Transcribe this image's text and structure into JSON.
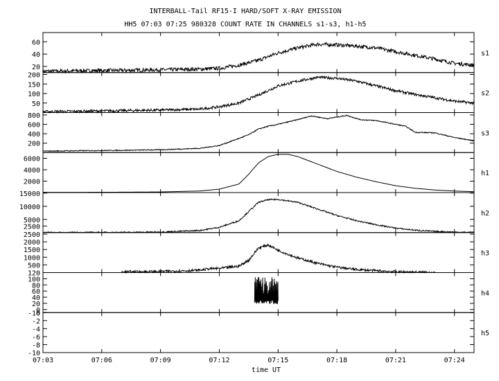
{
  "title_line1": "INTERBALL-Tail RF15-I HARD/SOFT X-RAY EMISSION",
  "title_line2": "HH5 07:03 07:25 980328  COUNT RATE IN CHANNELS s1-s3, h1-h5",
  "xlabel": "time UT",
  "chart_data": {
    "type": "line",
    "title": "INTERBALL-Tail RF15-I HARD/SOFT X-RAY EMISSION",
    "subtitle": "HH5 07:03 07:25 980328  COUNT RATE IN CHANNELS s1-s3, h1-h5",
    "xlabel": "time UT",
    "x_range_minutes": [
      0,
      22
    ],
    "x_ticks": [
      {
        "t": 0,
        "label": "07:03"
      },
      {
        "t": 3,
        "label": "07:06"
      },
      {
        "t": 6,
        "label": "07:09"
      },
      {
        "t": 9,
        "label": "07:12"
      },
      {
        "t": 12,
        "label": "07:15"
      },
      {
        "t": 15,
        "label": "07:18"
      },
      {
        "t": 18,
        "label": "07:21"
      },
      {
        "t": 21,
        "label": "07:24"
      }
    ],
    "panels": [
      {
        "name": "s1",
        "ylim": [
          10,
          75
        ],
        "yticks": [
          {
            "v": 20,
            "label": "20"
          },
          {
            "v": 40,
            "label": "40"
          },
          {
            "v": 60,
            "label": "60"
          }
        ],
        "noise": 3,
        "points": [
          [
            0,
            12
          ],
          [
            2,
            13
          ],
          [
            4,
            13.5
          ],
          [
            6,
            14.5
          ],
          [
            8,
            15.5
          ],
          [
            9,
            17
          ],
          [
            10,
            22
          ],
          [
            11,
            30
          ],
          [
            11.5,
            36
          ],
          [
            12,
            42
          ],
          [
            13,
            50
          ],
          [
            14,
            56
          ],
          [
            15,
            55
          ],
          [
            16,
            53
          ],
          [
            17,
            50
          ],
          [
            18,
            44
          ],
          [
            19,
            38
          ],
          [
            20,
            32
          ],
          [
            21,
            25
          ],
          [
            22,
            22
          ]
        ]
      },
      {
        "name": "s2",
        "ylim": [
          0,
          210
        ],
        "yticks": [
          {
            "v": 50,
            "label": "50"
          },
          {
            "v": 100,
            "label": "100"
          },
          {
            "v": 150,
            "label": "150"
          },
          {
            "v": 200,
            "label": "200"
          }
        ],
        "noise": 7,
        "points": [
          [
            0,
            5
          ],
          [
            2,
            7
          ],
          [
            4,
            10
          ],
          [
            6,
            13
          ],
          [
            8,
            18
          ],
          [
            9,
            30
          ],
          [
            10,
            50
          ],
          [
            11,
            92
          ],
          [
            12,
            140
          ],
          [
            13,
            165
          ],
          [
            14,
            185
          ],
          [
            15,
            180
          ],
          [
            16,
            165
          ],
          [
            17,
            140
          ],
          [
            18,
            115
          ],
          [
            19,
            95
          ],
          [
            20,
            78
          ],
          [
            21,
            60
          ],
          [
            22,
            50
          ]
        ]
      },
      {
        "name": "s3",
        "ylim": [
          0,
          850
        ],
        "yticks": [
          {
            "v": 200,
            "label": "200"
          },
          {
            "v": 400,
            "label": "400"
          },
          {
            "v": 600,
            "label": "600"
          },
          {
            "v": 800,
            "label": "800"
          }
        ],
        "noise": 10,
        "points": [
          [
            0,
            30
          ],
          [
            2,
            40
          ],
          [
            4,
            48
          ],
          [
            6,
            60
          ],
          [
            8,
            90
          ],
          [
            9,
            150
          ],
          [
            10,
            300
          ],
          [
            10.5,
            380
          ],
          [
            11,
            500
          ],
          [
            11.5,
            560
          ],
          [
            12,
            600
          ],
          [
            13,
            700
          ],
          [
            13.7,
            780
          ],
          [
            14.5,
            720
          ],
          [
            15.5,
            790
          ],
          [
            16.2,
            700
          ],
          [
            17,
            680
          ],
          [
            18,
            600
          ],
          [
            18.5,
            560
          ],
          [
            19,
            430
          ],
          [
            20,
            420
          ],
          [
            21,
            320
          ],
          [
            22,
            250
          ]
        ]
      },
      {
        "name": "h1",
        "ylim": [
          0,
          7000
        ],
        "yticks": [
          {
            "v": 2000,
            "label": "2000"
          },
          {
            "v": 4000,
            "label": "4000"
          },
          {
            "v": 6000,
            "label": "6000"
          }
        ],
        "noise": 0,
        "points": [
          [
            0,
            40
          ],
          [
            2,
            50
          ],
          [
            4,
            70
          ],
          [
            6,
            110
          ],
          [
            8,
            280
          ],
          [
            9,
            600
          ],
          [
            10,
            1500
          ],
          [
            10.5,
            3200
          ],
          [
            11,
            5200
          ],
          [
            11.5,
            6300
          ],
          [
            12,
            6700
          ],
          [
            12.5,
            6700
          ],
          [
            13,
            6300
          ],
          [
            14,
            5000
          ],
          [
            15,
            3700
          ],
          [
            16,
            2700
          ],
          [
            17,
            1900
          ],
          [
            18,
            1200
          ],
          [
            19,
            750
          ],
          [
            20,
            450
          ],
          [
            21,
            270
          ],
          [
            22,
            160
          ]
        ]
      },
      {
        "name": "h2",
        "ylim": [
          0,
          15200
        ],
        "yticks": [
          {
            "v": 2500,
            "label": "2500"
          },
          {
            "v": 5000,
            "label": "5000"
          },
          {
            "v": 10000,
            "label": "10000"
          },
          {
            "v": 15000,
            "label": "15000"
          }
        ],
        "noise": 250,
        "points": [
          [
            0,
            20
          ],
          [
            2,
            40
          ],
          [
            4,
            80
          ],
          [
            6,
            200
          ],
          [
            8,
            800
          ],
          [
            9,
            2000
          ],
          [
            10,
            4500
          ],
          [
            10.5,
            8000
          ],
          [
            11,
            11500
          ],
          [
            11.5,
            12500
          ],
          [
            12,
            12600
          ],
          [
            13,
            11500
          ],
          [
            14,
            9000
          ],
          [
            15,
            6500
          ],
          [
            16,
            4500
          ],
          [
            17,
            3000
          ],
          [
            18,
            1700
          ],
          [
            19,
            900
          ],
          [
            20,
            450
          ],
          [
            21,
            180
          ],
          [
            22,
            60
          ]
        ]
      },
      {
        "name": "h3",
        "ylim": [
          0,
          2600
        ],
        "yticks": [
          {
            "v": 500,
            "label": "500"
          },
          {
            "v": 1000,
            "label": "1000"
          },
          {
            "v": 1500,
            "label": "1500"
          },
          {
            "v": 2000,
            "label": "2000"
          },
          {
            "v": 2500,
            "label": "2500"
          }
        ],
        "noise": 80,
        "points": [
          [
            4,
            50
          ],
          [
            6,
            70
          ],
          [
            8,
            150
          ],
          [
            8.5,
            250
          ],
          [
            9,
            270
          ],
          [
            10,
            420
          ],
          [
            10.5,
            800
          ],
          [
            11,
            1600
          ],
          [
            11.5,
            1800
          ],
          [
            12,
            1450
          ],
          [
            13,
            950
          ],
          [
            14,
            600
          ],
          [
            15,
            350
          ],
          [
            16,
            200
          ],
          [
            17,
            120
          ],
          [
            18,
            60
          ],
          [
            19,
            30
          ],
          [
            20,
            15
          ]
        ]
      },
      {
        "name": "h4",
        "ylim": [
          -10,
          120
        ],
        "yticks": [
          {
            "v": -10,
            "label": "-10"
          },
          {
            "v": 0,
            "label": "0"
          },
          {
            "v": 20,
            "label": "20"
          },
          {
            "v": 40,
            "label": "40"
          },
          {
            "v": 60,
            "label": "60"
          },
          {
            "v": 80,
            "label": "80"
          },
          {
            "v": 100,
            "label": "100"
          },
          {
            "v": 120,
            "label": "120"
          }
        ],
        "burst": {
          "t_start": 10.8,
          "t_end": 12.0,
          "min": 18,
          "max": 105
        }
      },
      {
        "name": "h5",
        "ylim": [
          -10,
          0
        ],
        "yticks": [
          {
            "v": -10,
            "label": "-10"
          },
          {
            "v": -8,
            "label": "-8"
          },
          {
            "v": -6,
            "label": "-6"
          },
          {
            "v": -4,
            "label": "-4"
          },
          {
            "v": -2,
            "label": "-2"
          },
          {
            "v": 0,
            "label": "0"
          }
        ],
        "points": []
      }
    ]
  }
}
